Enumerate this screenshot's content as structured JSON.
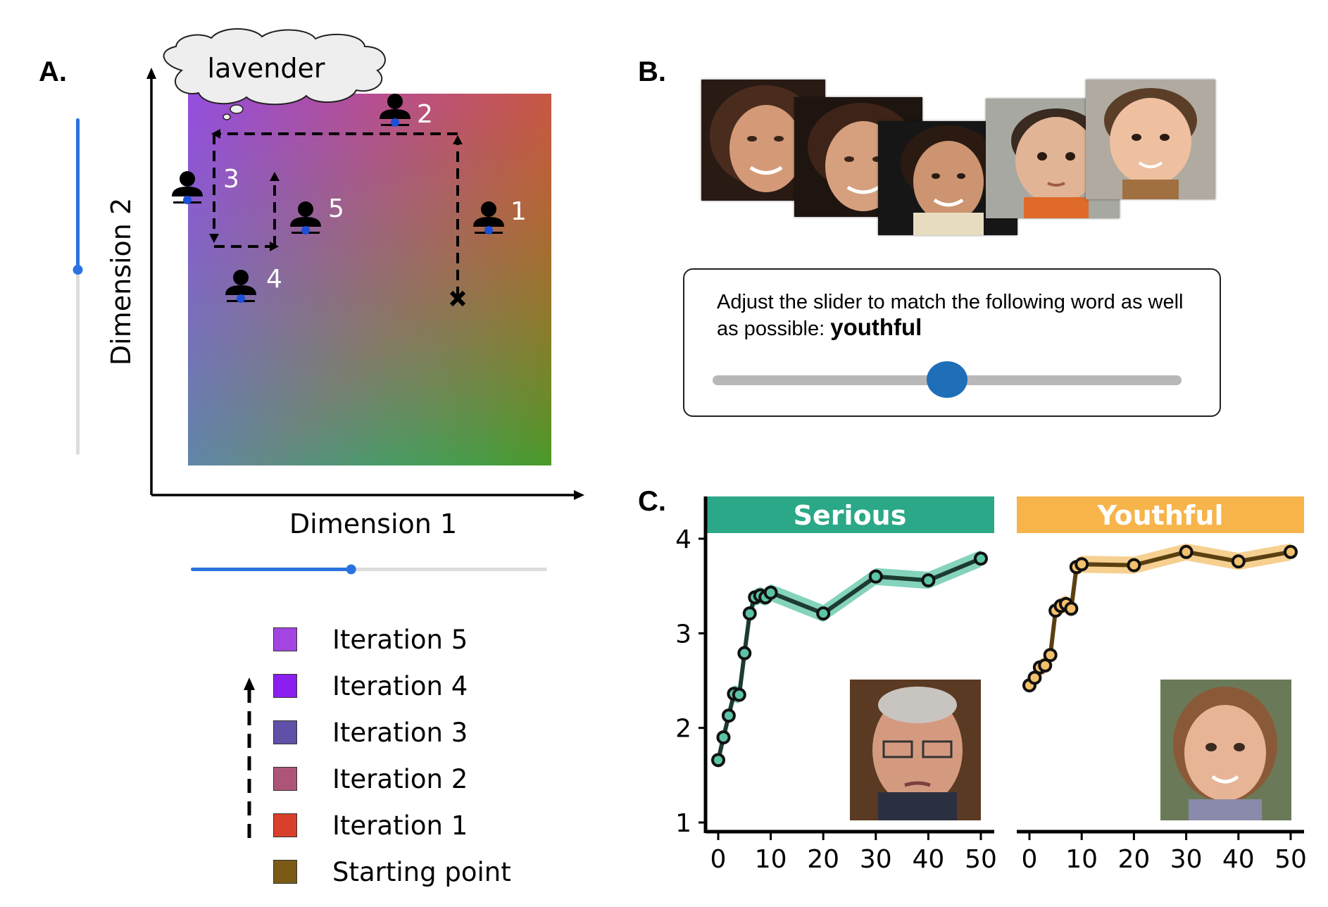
{
  "panels": {
    "a_label": "A.",
    "b_label": "B.",
    "c_label": "C."
  },
  "panel_a": {
    "thought_word": "lavender",
    "x_axis_label": "Dimension 1",
    "y_axis_label": "Dimension 2",
    "participants": [
      "1",
      "2",
      "3",
      "4",
      "5"
    ],
    "slider_dim1_value": 0.45,
    "slider_dim2_value": 0.55,
    "start_marker_icon": "x-mark-icon",
    "participant_icon": "person-icon"
  },
  "legend": {
    "items": [
      {
        "label": "Iteration 5",
        "color": "#a345e3"
      },
      {
        "label": "Iteration 4",
        "color": "#8a1ff0"
      },
      {
        "label": "Iteration 3",
        "color": "#6150a8"
      },
      {
        "label": "Iteration 2",
        "color": "#ad5578"
      },
      {
        "label": "Iteration 1",
        "color": "#d8402b"
      },
      {
        "label": "Starting point",
        "color": "#7a5a14"
      }
    ]
  },
  "panel_b": {
    "prompt_text": "Adjust the slider to match the following word as well as possible:",
    "target_word": "youthful",
    "slider_value": 0.5,
    "slider_color": "#1f6fb8",
    "faces": [
      "adult-woman-face-1",
      "adult-woman-face-2",
      "young-woman-face",
      "toddler-face",
      "young-boy-face"
    ]
  },
  "chart_data": [
    {
      "type": "line",
      "title": "Serious",
      "header_color": "#2ba887",
      "line_color": "#1d3b30",
      "band_color": "#5cc4a6",
      "x": [
        0,
        1,
        2,
        3,
        4,
        5,
        6,
        7,
        8,
        9,
        10,
        20,
        30,
        40,
        50
      ],
      "y": [
        1.66,
        1.9,
        2.13,
        2.36,
        2.35,
        2.79,
        3.21,
        3.38,
        3.4,
        3.38,
        3.43,
        3.21,
        3.6,
        3.56,
        3.79
      ],
      "xticks": [
        "0",
        "10",
        "20",
        "30",
        "40",
        "50"
      ],
      "yticks": [
        "1",
        "2",
        "3",
        "4"
      ],
      "xlim": [
        0,
        50
      ],
      "ylim": [
        1,
        4
      ],
      "inset_image": "older-man-face"
    },
    {
      "type": "line",
      "title": "Youthful",
      "header_color": "#f7b44b",
      "line_color": "#5a4011",
      "band_color": "#f3c06b",
      "x": [
        0,
        1,
        2,
        3,
        4,
        5,
        6,
        7,
        8,
        9,
        10,
        20,
        30,
        40,
        50
      ],
      "y": [
        2.45,
        2.53,
        2.64,
        2.66,
        2.77,
        3.24,
        3.29,
        3.31,
        3.26,
        3.7,
        3.73,
        3.72,
        3.86,
        3.76,
        3.86
      ],
      "xticks": [
        "0",
        "10",
        "20",
        "30",
        "40",
        "50"
      ],
      "yticks": [],
      "xlim": [
        0,
        50
      ],
      "ylim": [
        1,
        4
      ],
      "inset_image": "young-girl-face"
    }
  ]
}
